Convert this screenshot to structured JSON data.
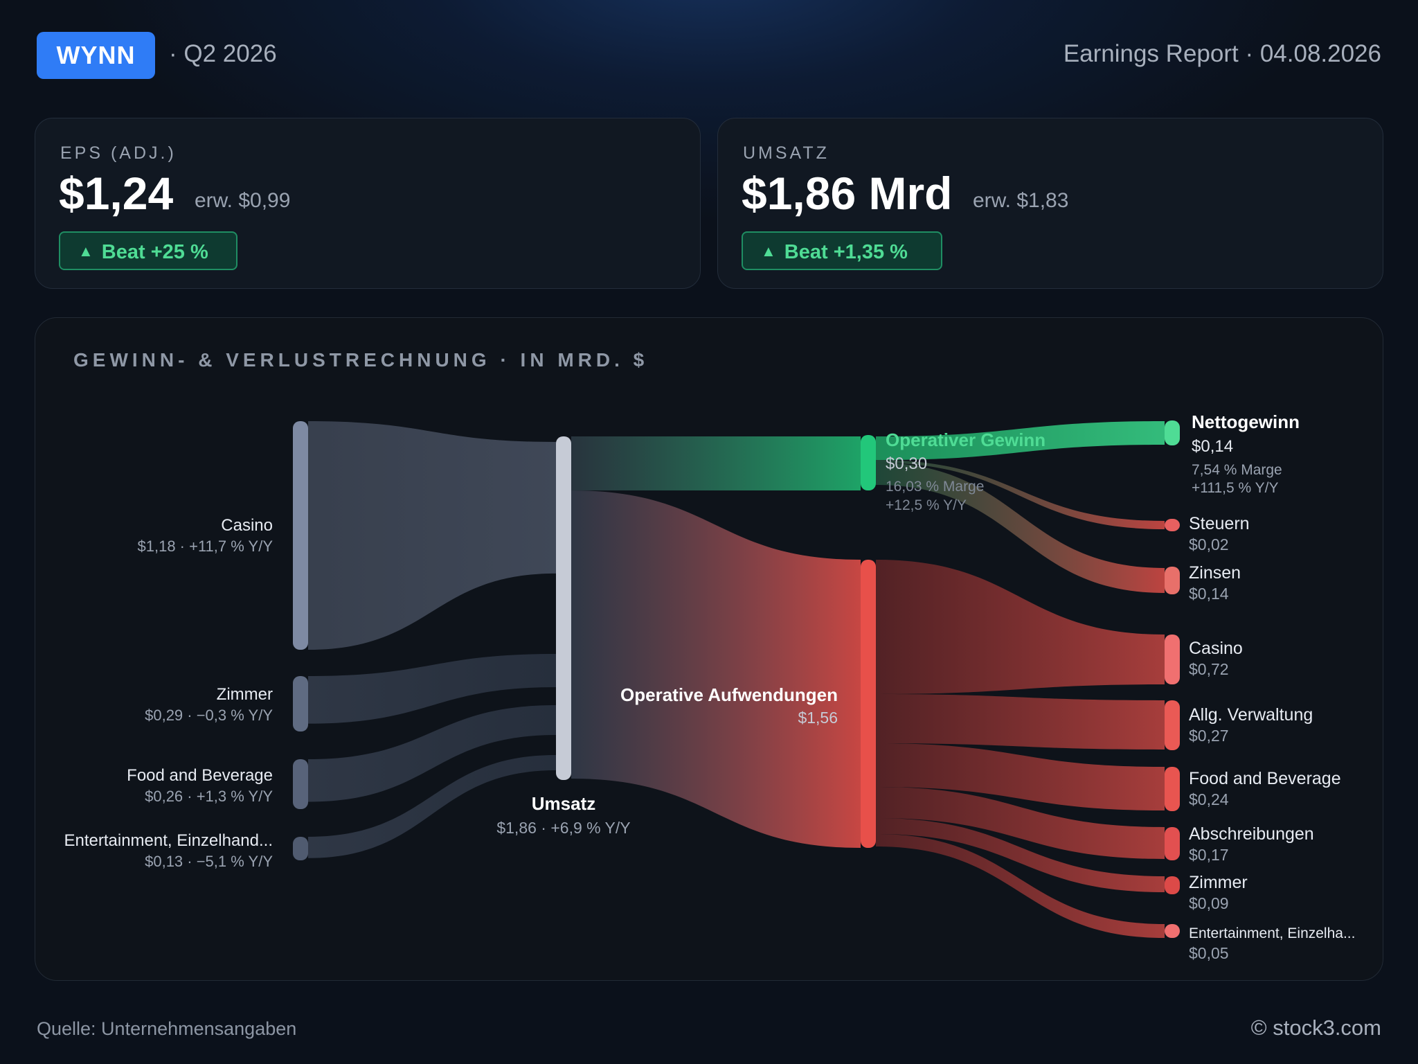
{
  "header": {
    "ticker": "WYNN",
    "period": "· Q2 2026",
    "report": "Earnings Report · 04.08.2026"
  },
  "eps": {
    "label": "EPS (ADJ.)",
    "value": "$1,24",
    "estimate": "erw. $0,99",
    "beat": "Beat +25 %"
  },
  "revenue": {
    "label": "UMSATZ",
    "value": "$1,86 Mrd",
    "estimate": "erw. $1,83",
    "beat": "Beat +1,35 %"
  },
  "colors": {
    "accent": "#2f7cf6",
    "beat_green": "#4fdc95",
    "profit_green": "#22c77a",
    "expense_red": "#e8504a",
    "source_slate": "#7e8aa3"
  },
  "chart_data": {
    "type": "sankey",
    "title": "GEWINN- & VERLUSTRECHNUNG · IN MRD. $",
    "unit": "Mrd. $",
    "nodes": [
      {
        "id": "casino_in",
        "name": "Casino",
        "value": 1.18,
        "value_label": "$1,18",
        "sub": "$1,18 · +11,7 % Y/Y",
        "kind": "source"
      },
      {
        "id": "zimmer_in",
        "name": "Zimmer",
        "value": 0.29,
        "value_label": "$0,29",
        "sub": "$0,29 · −0,3 % Y/Y",
        "kind": "source"
      },
      {
        "id": "fb_in",
        "name": "Food and Beverage",
        "value": 0.26,
        "value_label": "$0,26",
        "sub": "$0,26 · +1,3 % Y/Y",
        "kind": "source"
      },
      {
        "id": "ent_in",
        "name": "Entertainment, Einzelhand...",
        "value": 0.13,
        "value_label": "$0,13",
        "sub": "$0,13 · −5,1 % Y/Y",
        "kind": "source"
      },
      {
        "id": "umsatz",
        "name": "Umsatz",
        "value": 1.86,
        "value_label": "$1,86",
        "sub": "$1,86 · +6,9 % Y/Y",
        "kind": "total"
      },
      {
        "id": "opgewinn",
        "name": "Operativer Gewinn",
        "value": 0.3,
        "value_label": "$0,30",
        "margin": "16,03 % Marge",
        "yoy": "+12,5 % Y/Y",
        "kind": "profit"
      },
      {
        "id": "opaufw",
        "name": "Operative Aufwendungen",
        "value": 1.56,
        "value_label": "$1,56",
        "kind": "expense"
      },
      {
        "id": "netto",
        "name": "Nettogewinn",
        "value": 0.14,
        "value_label": "$0,14",
        "margin": "7,54 % Marge",
        "yoy": "+111,5 % Y/Y",
        "kind": "profit"
      },
      {
        "id": "steuern",
        "name": "Steuern",
        "value": 0.02,
        "value_label": "$0,02",
        "kind": "expense"
      },
      {
        "id": "zinsen",
        "name": "Zinsen",
        "value": 0.14,
        "value_label": "$0,14",
        "kind": "expense"
      },
      {
        "id": "casino_out",
        "name": "Casino",
        "value": 0.72,
        "value_label": "$0,72",
        "kind": "expense"
      },
      {
        "id": "verw",
        "name": "Allg. Verwaltung",
        "value": 0.27,
        "value_label": "$0,27",
        "kind": "expense"
      },
      {
        "id": "fb_out",
        "name": "Food and Beverage",
        "value": 0.24,
        "value_label": "$0,24",
        "kind": "expense"
      },
      {
        "id": "abschr",
        "name": "Abschreibungen",
        "value": 0.17,
        "value_label": "$0,17",
        "kind": "expense"
      },
      {
        "id": "zimmer_out",
        "name": "Zimmer",
        "value": 0.09,
        "value_label": "$0,09",
        "kind": "expense"
      },
      {
        "id": "ent_out",
        "name": "Entertainment, Einzelha...",
        "value": 0.05,
        "value_label": "$0,05",
        "kind": "expense"
      }
    ],
    "links": [
      {
        "from": "casino_in",
        "to": "umsatz",
        "value": 1.18
      },
      {
        "from": "zimmer_in",
        "to": "umsatz",
        "value": 0.29
      },
      {
        "from": "fb_in",
        "to": "umsatz",
        "value": 0.26
      },
      {
        "from": "ent_in",
        "to": "umsatz",
        "value": 0.13
      },
      {
        "from": "umsatz",
        "to": "opgewinn",
        "value": 0.3
      },
      {
        "from": "umsatz",
        "to": "opaufw",
        "value": 1.56
      },
      {
        "from": "opgewinn",
        "to": "netto",
        "value": 0.14
      },
      {
        "from": "opgewinn",
        "to": "steuern",
        "value": 0.02
      },
      {
        "from": "opgewinn",
        "to": "zinsen",
        "value": 0.14
      },
      {
        "from": "opaufw",
        "to": "casino_out",
        "value": 0.72
      },
      {
        "from": "opaufw",
        "to": "verw",
        "value": 0.27
      },
      {
        "from": "opaufw",
        "to": "fb_out",
        "value": 0.24
      },
      {
        "from": "opaufw",
        "to": "abschr",
        "value": 0.17
      },
      {
        "from": "opaufw",
        "to": "zimmer_out",
        "value": 0.09
      },
      {
        "from": "opaufw",
        "to": "ent_out",
        "value": 0.05
      }
    ]
  },
  "footer": {
    "source": "Quelle: Unternehmensangaben",
    "brand": "© stock3.com"
  }
}
